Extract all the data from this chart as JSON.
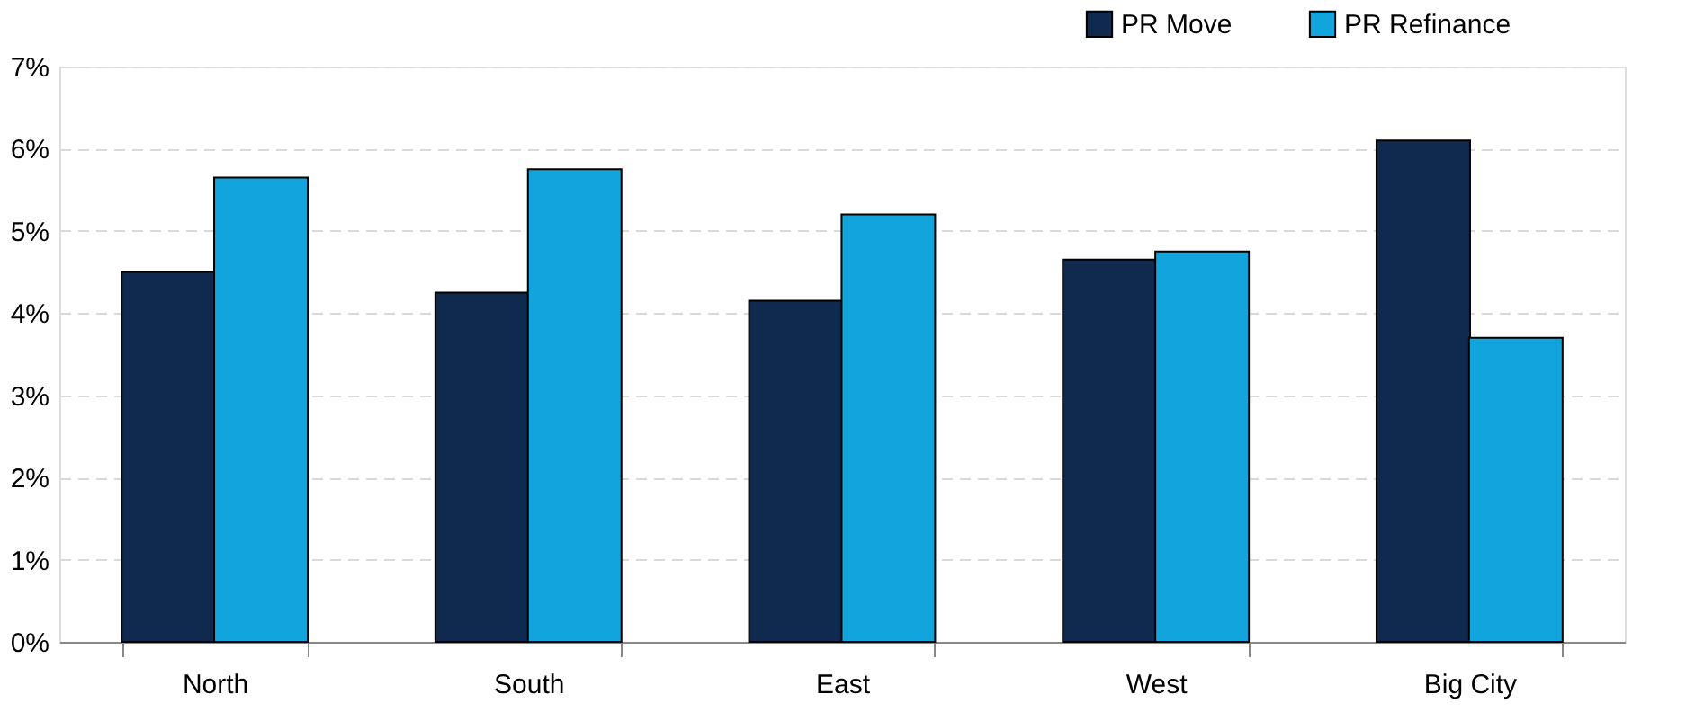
{
  "chart_data": {
    "type": "bar",
    "categories": [
      "North",
      "South",
      "East",
      "West",
      "Big City"
    ],
    "series": [
      {
        "name": "PR Move",
        "color": "#0f2a4e",
        "values": [
          4.5,
          4.25,
          4.15,
          4.65,
          6.1
        ]
      },
      {
        "name": "PR Refinance",
        "color": "#12a4dc",
        "values": [
          5.65,
          5.75,
          5.2,
          4.75,
          3.7
        ]
      }
    ],
    "ylim": [
      0,
      7
    ],
    "yticks": [
      {
        "value": 0,
        "label": "0%"
      },
      {
        "value": 1,
        "label": "1%"
      },
      {
        "value": 2,
        "label": "2%"
      },
      {
        "value": 3,
        "label": "3%"
      },
      {
        "value": 4,
        "label": "4%"
      },
      {
        "value": 5,
        "label": "5%"
      },
      {
        "value": 6,
        "label": "6%"
      },
      {
        "value": 7,
        "label": "7%"
      }
    ],
    "grid": "y",
    "legend": "top right"
  }
}
